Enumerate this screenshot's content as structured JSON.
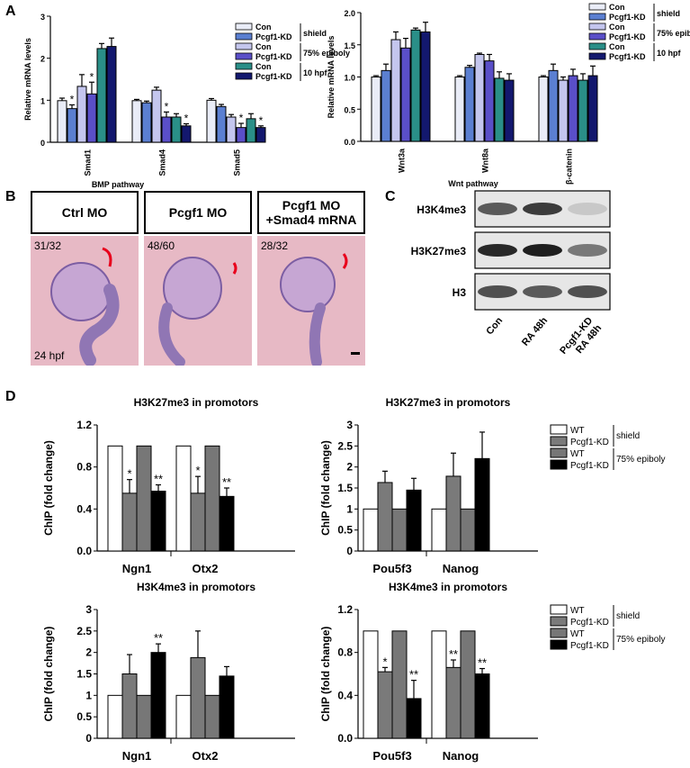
{
  "panels": {
    "A": "A",
    "B": "B",
    "C": "C",
    "D": "D"
  },
  "colors": {
    "con_shield": "#e9ecf7",
    "kd_shield": "#5b7fd1",
    "con_75": "#c4c6ee",
    "kd_75": "#5a4fc8",
    "con_10": "#2a8f88",
    "kd_10": "#13186e",
    "wt": "#ffffff",
    "pcgf_kd_shield": "#7a7a7a",
    "wt_75": "#777777",
    "kd_75_bw": "#000000",
    "marker": "#e8001c"
  },
  "panel_a_legend": [
    {
      "label": "Con",
      "color_key": "con_shield"
    },
    {
      "label": "Pcgf1-KD",
      "color_key": "kd_shield"
    },
    {
      "label": "Con",
      "color_key": "con_75"
    },
    {
      "label": "Pcgf1-KD",
      "color_key": "kd_75"
    },
    {
      "label": "Con",
      "color_key": "con_10"
    },
    {
      "label": "Pcgf1-KD",
      "color_key": "kd_10"
    }
  ],
  "panel_a_groups": [
    "shield",
    "75% epiboly",
    "10 hpf"
  ],
  "panel_d_legend": [
    "WT",
    "Pcgf1-KD",
    "WT",
    "Pcgf1-KD"
  ],
  "panel_d_groups": [
    "shield",
    "75% epiboly"
  ],
  "panel_b": {
    "labels": [
      "Ctrl MO",
      "Pcgf1 MO",
      "Pcgf1 MO\n+Smad4 mRNA"
    ],
    "counts": [
      "31/32",
      "48/60",
      "28/32"
    ],
    "stage": "24 hpf"
  },
  "panel_c": {
    "rows": [
      "H3K4me3",
      "H3K27me3",
      "H3"
    ],
    "lanes": [
      "Con",
      "RA 48h",
      "Pcgf1-KD\nRA 48h"
    ],
    "band_intensity": [
      [
        0.7,
        0.85,
        0.15
      ],
      [
        0.95,
        1.0,
        0.55
      ],
      [
        0.75,
        0.7,
        0.75
      ]
    ]
  },
  "chart_data": [
    {
      "type": "bar",
      "id": "A1",
      "categories": [
        "Smad1",
        "Smad4",
        "Smad5"
      ],
      "xlabel": "BMP pathway",
      "ylabel": "Relative mRNA levels",
      "ylim": [
        0,
        3
      ],
      "yticks": [
        0,
        1,
        2,
        3
      ],
      "series": [
        {
          "values": [
            0.99,
            0.99,
            1.0
          ],
          "errors": [
            0.06,
            0.03,
            0.04
          ]
        },
        {
          "values": [
            0.8,
            0.94,
            0.85
          ],
          "errors": [
            0.09,
            0.04,
            0.05
          ]
        },
        {
          "values": [
            1.33,
            1.24,
            0.6
          ],
          "errors": [
            0.28,
            0.07,
            0.06
          ]
        },
        {
          "values": [
            1.15,
            0.6,
            0.35
          ],
          "errors": [
            0.28,
            0.12,
            0.1
          ]
        },
        {
          "values": [
            2.23,
            0.6,
            0.56
          ],
          "errors": [
            0.12,
            0.08,
            0.12
          ]
        },
        {
          "values": [
            2.28,
            0.39,
            0.35
          ],
          "errors": [
            0.2,
            0.05,
            0.04
          ]
        }
      ],
      "annotations": [
        {
          "category": 0,
          "series": 1,
          "text": "*"
        },
        {
          "category": 0,
          "series": 3,
          "text": "*"
        },
        {
          "category": 1,
          "series": 3,
          "text": "*"
        },
        {
          "category": 1,
          "series": 5,
          "text": "*"
        },
        {
          "category": 2,
          "series": 3,
          "text": "*"
        },
        {
          "category": 2,
          "series": 5,
          "text": "*"
        }
      ]
    },
    {
      "type": "bar",
      "id": "A2",
      "categories": [
        "Wnt3a",
        "Wnt8a",
        "β-catenin"
      ],
      "xlabel": "Wnt pathway",
      "ylabel": "Relative mRNA levels",
      "ylim": [
        0,
        2.0
      ],
      "yticks": [
        0.0,
        0.5,
        1.0,
        1.5,
        2.0
      ],
      "series": [
        {
          "values": [
            1.0,
            1.0,
            1.0
          ],
          "errors": [
            0.02,
            0.02,
            0.02
          ]
        },
        {
          "values": [
            1.1,
            1.15,
            1.1
          ],
          "errors": [
            0.1,
            0.03,
            0.1
          ]
        },
        {
          "values": [
            1.58,
            1.35,
            0.95
          ],
          "errors": [
            0.12,
            0.02,
            0.05
          ]
        },
        {
          "values": [
            1.45,
            1.25,
            1.02
          ],
          "errors": [
            0.15,
            0.1,
            0.1
          ]
        },
        {
          "values": [
            1.73,
            0.98,
            0.95
          ],
          "errors": [
            0.03,
            0.1,
            0.1
          ]
        },
        {
          "values": [
            1.7,
            0.95,
            1.02
          ],
          "errors": [
            0.15,
            0.1,
            0.15
          ]
        }
      ],
      "annotations": []
    },
    {
      "type": "bar",
      "id": "D1",
      "title": "H3K27me3 in promotors",
      "categories": [
        "Ngn1",
        "Otx2"
      ],
      "ylabel": "ChIP (fold change)",
      "ylim": [
        0,
        1.2
      ],
      "yticks": [
        0,
        0.4,
        0.8,
        1.2
      ],
      "series": [
        {
          "values": [
            1.0,
            1.0
          ],
          "errors": [
            0,
            0
          ]
        },
        {
          "values": [
            0.55,
            0.55
          ],
          "errors": [
            0.13,
            0.16
          ]
        },
        {
          "values": [
            1.0,
            1.0
          ],
          "errors": [
            0,
            0
          ]
        },
        {
          "values": [
            0.57,
            0.52
          ],
          "errors": [
            0.06,
            0.08
          ]
        }
      ],
      "annotations": [
        {
          "category": 0,
          "series": 1,
          "text": "*"
        },
        {
          "category": 0,
          "series": 3,
          "text": "**"
        },
        {
          "category": 1,
          "series": 1,
          "text": "*"
        },
        {
          "category": 1,
          "series": 3,
          "text": "**"
        }
      ]
    },
    {
      "type": "bar",
      "id": "D2",
      "title": "H3K27me3 in promotors",
      "categories": [
        "Pou5f3",
        "Nanog"
      ],
      "ylabel": "ChIP (fold change)",
      "ylim": [
        0,
        3
      ],
      "yticks": [
        0,
        0.5,
        1,
        1.5,
        2,
        2.5,
        3
      ],
      "series": [
        {
          "values": [
            1.0,
            1.0
          ],
          "errors": [
            0,
            0
          ]
        },
        {
          "values": [
            1.63,
            1.78
          ],
          "errors": [
            0.27,
            0.55
          ]
        },
        {
          "values": [
            1.0,
            1.0
          ],
          "errors": [
            0,
            0
          ]
        },
        {
          "values": [
            1.45,
            2.2
          ],
          "errors": [
            0.28,
            0.63
          ]
        }
      ],
      "annotations": []
    },
    {
      "type": "bar",
      "id": "D3",
      "title": "H3K4me3 in promotors",
      "categories": [
        "Ngn1",
        "Otx2"
      ],
      "ylabel": "ChIP (fold change)",
      "ylim": [
        0,
        3
      ],
      "yticks": [
        0,
        0.5,
        1,
        1.5,
        2,
        2.5,
        3
      ],
      "series": [
        {
          "values": [
            1.0,
            1.0
          ],
          "errors": [
            0,
            0
          ]
        },
        {
          "values": [
            1.5,
            1.88
          ],
          "errors": [
            0.45,
            0.62
          ]
        },
        {
          "values": [
            1.0,
            1.0
          ],
          "errors": [
            0,
            0
          ]
        },
        {
          "values": [
            2.0,
            1.45
          ],
          "errors": [
            0.2,
            0.22
          ]
        }
      ],
      "annotations": [
        {
          "category": 0,
          "series": 3,
          "text": "**"
        }
      ]
    },
    {
      "type": "bar",
      "id": "D4",
      "title": "H3K4me3 in promotors",
      "categories": [
        "Pou5f3",
        "Nanog"
      ],
      "ylabel": "ChIP (fold change)",
      "ylim": [
        0,
        1.2
      ],
      "yticks": [
        0,
        0.4,
        0.8,
        1.2
      ],
      "series": [
        {
          "values": [
            1.0,
            1.0
          ],
          "errors": [
            0,
            0
          ]
        },
        {
          "values": [
            0.62,
            0.66
          ],
          "errors": [
            0.04,
            0.07
          ]
        },
        {
          "values": [
            1.0,
            1.0
          ],
          "errors": [
            0,
            0
          ]
        },
        {
          "values": [
            0.37,
            0.6
          ],
          "errors": [
            0.17,
            0.05
          ]
        }
      ],
      "annotations": [
        {
          "category": 0,
          "series": 1,
          "text": "*"
        },
        {
          "category": 0,
          "series": 3,
          "text": "**"
        },
        {
          "category": 1,
          "series": 1,
          "text": "**"
        },
        {
          "category": 1,
          "series": 3,
          "text": "**"
        }
      ]
    }
  ]
}
